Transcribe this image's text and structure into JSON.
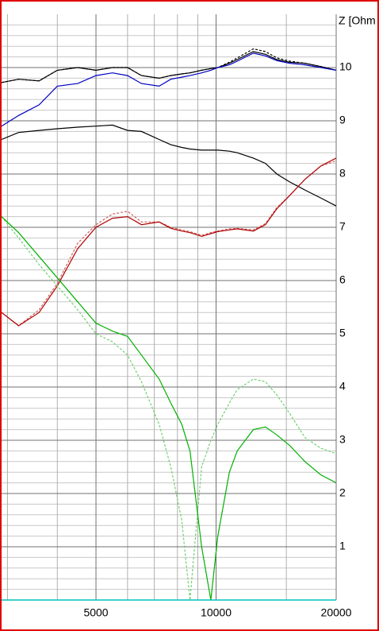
{
  "chart_data": {
    "type": "line",
    "y_label": "Z [Ohm",
    "x": [
      2900,
      3200,
      3600,
      4000,
      4500,
      5000,
      5500,
      6000,
      6500,
      7200,
      7700,
      8200,
      8600,
      9200,
      9700,
      10100,
      10800,
      11300,
      12400,
      13300,
      14200,
      15300,
      16700,
      18300,
      20000
    ],
    "xlim": [
      2900,
      20000
    ],
    "xscale": "log",
    "xticks": [
      5000,
      10000,
      20000
    ],
    "xminorticks": [
      3000,
      4000,
      6000,
      7000,
      8000,
      9000,
      15000
    ],
    "ylim": [
      0,
      11
    ],
    "yticks": [
      1,
      2,
      3,
      4,
      5,
      6,
      7,
      8,
      9,
      10
    ],
    "yminorticks": [
      0.2,
      0.4,
      0.6,
      0.8,
      1.2,
      1.4,
      1.6,
      1.8,
      2.2,
      2.4,
      2.6,
      2.8,
      3.2,
      3.4,
      3.6,
      3.8,
      4.2,
      4.4,
      4.6,
      4.8,
      5.2,
      5.4,
      5.6,
      5.8,
      6.2,
      6.4,
      6.6,
      6.8,
      7.2,
      7.4,
      7.6,
      7.8,
      8.2,
      8.4,
      8.6,
      8.8,
      9.2,
      9.4,
      9.6,
      9.8,
      10.2,
      10.4,
      10.6,
      10.8
    ],
    "grid": true,
    "series": [
      {
        "color": "#000000",
        "dash": true,
        "values": [
          9.72,
          9.78,
          9.75,
          9.95,
          10.0,
          9.95,
          10.0,
          10.0,
          9.85,
          9.8,
          9.85,
          9.88,
          9.9,
          9.95,
          9.98,
          10.0,
          10.1,
          10.18,
          10.35,
          10.3,
          10.18,
          10.12,
          10.08,
          10.02,
          9.95
        ]
      },
      {
        "color": "#000000",
        "dash": false,
        "values": [
          9.72,
          9.78,
          9.75,
          9.95,
          10.0,
          9.95,
          10.0,
          10.0,
          9.85,
          9.8,
          9.85,
          9.88,
          9.9,
          9.95,
          9.98,
          10.0,
          10.08,
          10.15,
          10.3,
          10.25,
          10.15,
          10.1,
          10.08,
          10.02,
          9.95
        ]
      },
      {
        "color": "#0000c0",
        "dash": false,
        "values": [
          8.9,
          9.1,
          9.3,
          9.65,
          9.7,
          9.85,
          9.9,
          9.85,
          9.7,
          9.65,
          9.78,
          9.82,
          9.85,
          9.9,
          9.95,
          10.0,
          10.05,
          10.12,
          10.27,
          10.22,
          10.13,
          10.08,
          10.05,
          10.0,
          9.95
        ]
      },
      {
        "color": "#000000",
        "dash": false,
        "values": [
          8.65,
          8.78,
          8.82,
          8.85,
          8.88,
          8.9,
          8.92,
          8.82,
          8.8,
          8.65,
          8.55,
          8.5,
          8.47,
          8.45,
          8.45,
          8.45,
          8.43,
          8.4,
          8.3,
          8.2,
          8.0,
          7.85,
          7.7,
          7.55,
          7.4
        ]
      },
      {
        "color": "#d06060",
        "dash": true,
        "values": [
          5.4,
          5.15,
          5.45,
          5.95,
          6.7,
          7.05,
          7.25,
          7.3,
          7.1,
          7.1,
          7.0,
          6.95,
          6.92,
          6.85,
          6.9,
          6.93,
          6.97,
          6.98,
          6.95,
          7.07,
          7.37,
          7.6,
          7.9,
          8.15,
          8.25
        ]
      },
      {
        "color": "#b00000",
        "dash": false,
        "values": [
          5.4,
          5.15,
          5.4,
          5.9,
          6.6,
          7.0,
          7.17,
          7.2,
          7.05,
          7.1,
          6.98,
          6.93,
          6.9,
          6.83,
          6.88,
          6.92,
          6.95,
          6.97,
          6.93,
          7.05,
          7.35,
          7.6,
          7.9,
          8.15,
          8.3
        ]
      },
      {
        "color": "#70d070",
        "dash": true,
        "values": [
          7.2,
          6.8,
          6.3,
          5.9,
          5.45,
          5.0,
          4.85,
          4.6,
          4.1,
          3.3,
          2.5,
          1.5,
          0,
          2.5,
          3.0,
          3.3,
          3.7,
          3.95,
          4.15,
          4.1,
          3.85,
          3.5,
          3.05,
          2.85,
          2.75
        ]
      },
      {
        "color": "#00b000",
        "dash": false,
        "values": [
          7.2,
          6.9,
          6.45,
          6.05,
          5.6,
          5.2,
          5.05,
          4.95,
          4.6,
          4.15,
          3.7,
          3.3,
          2.8,
          1.0,
          0,
          1.2,
          2.4,
          2.8,
          3.2,
          3.25,
          3.1,
          2.9,
          2.6,
          2.35,
          2.2
        ]
      }
    ]
  }
}
